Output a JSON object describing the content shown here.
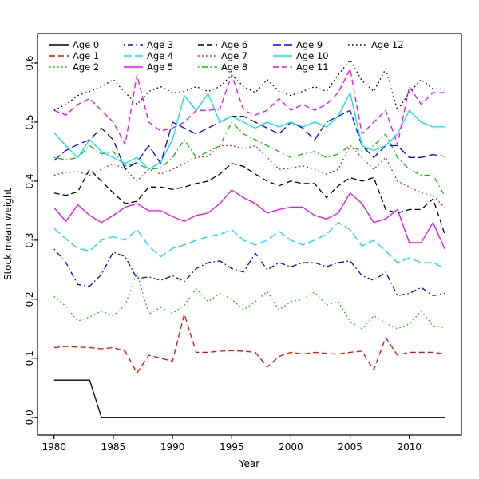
{
  "chart_data": {
    "type": "line",
    "title": "",
    "xlabel": "Year",
    "ylabel": "Stock mean weight",
    "xlim": [
      1978.6,
      2014.4
    ],
    "ylim": [
      -0.03,
      0.65
    ],
    "x_ticks": [
      1980,
      1985,
      1990,
      1995,
      2000,
      2005,
      2010
    ],
    "y_ticks": [
      0.0,
      0.1,
      0.2,
      0.3,
      0.4,
      0.5,
      0.6
    ],
    "grid": false,
    "legend_position": "top-inside, 5 columns, no box",
    "years": [
      1980,
      1981,
      1982,
      1983,
      1984,
      1985,
      1986,
      1987,
      1988,
      1989,
      1990,
      1991,
      1992,
      1993,
      1994,
      1995,
      1996,
      1997,
      1998,
      1999,
      2000,
      2001,
      2002,
      2003,
      2004,
      2005,
      2006,
      2007,
      2008,
      2009,
      2010,
      2011,
      2012,
      2013
    ],
    "series": [
      {
        "name": "Age 0",
        "color": "#000000",
        "linetype": "solid",
        "values": [
          0.063,
          0.063,
          0.063,
          0.063,
          0.0,
          0.0,
          0.0,
          0.0,
          0.0,
          0.0,
          0.0,
          0.0,
          0.0,
          0.0,
          0.0,
          0.0,
          0.0,
          0.0,
          0.0,
          0.0,
          0.0,
          0.0,
          0.0,
          0.0,
          0.0,
          0.0,
          0.0,
          0.0,
          0.0,
          0.0,
          0.0,
          0.0,
          0.0,
          0.0
        ]
      },
      {
        "name": "Age 1",
        "color": "#ff0000",
        "linetype": "dashed",
        "values": [
          0.118,
          0.12,
          0.119,
          0.118,
          0.116,
          0.118,
          0.112,
          0.075,
          0.105,
          0.1,
          0.095,
          0.175,
          0.11,
          0.11,
          0.112,
          0.113,
          0.112,
          0.11,
          0.085,
          0.103,
          0.11,
          0.107,
          0.11,
          0.108,
          0.107,
          0.11,
          0.112,
          0.08,
          0.135,
          0.105,
          0.11,
          0.11,
          0.11,
          0.107
        ]
      },
      {
        "name": "Age 2",
        "color": "#00c800",
        "linetype": "dotted",
        "values": [
          0.205,
          0.188,
          0.163,
          0.17,
          0.18,
          0.172,
          0.19,
          0.245,
          0.175,
          0.186,
          0.176,
          0.19,
          0.218,
          0.196,
          0.21,
          0.2,
          0.182,
          0.196,
          0.213,
          0.182,
          0.196,
          0.2,
          0.212,
          0.19,
          0.196,
          0.162,
          0.15,
          0.172,
          0.16,
          0.15,
          0.158,
          0.18,
          0.155,
          0.152
        ]
      },
      {
        "name": "Age 3",
        "color": "#0000ff",
        "linetype": "dotdash",
        "values": [
          0.285,
          0.262,
          0.225,
          0.222,
          0.242,
          0.28,
          0.272,
          0.235,
          0.238,
          0.232,
          0.24,
          0.23,
          0.252,
          0.262,
          0.265,
          0.252,
          0.246,
          0.278,
          0.25,
          0.262,
          0.255,
          0.262,
          0.262,
          0.255,
          0.262,
          0.265,
          0.24,
          0.232,
          0.246,
          0.206,
          0.21,
          0.22,
          0.206,
          0.21
        ]
      },
      {
        "name": "Age 4",
        "color": "#00e5ee",
        "linetype": "longdash",
        "values": [
          0.32,
          0.302,
          0.286,
          0.282,
          0.3,
          0.306,
          0.3,
          0.318,
          0.29,
          0.272,
          0.286,
          0.292,
          0.3,
          0.306,
          0.31,
          0.318,
          0.3,
          0.292,
          0.3,
          0.315,
          0.3,
          0.292,
          0.3,
          0.31,
          0.33,
          0.318,
          0.29,
          0.3,
          0.282,
          0.262,
          0.27,
          0.262,
          0.262,
          0.252
        ]
      },
      {
        "name": "Age 5",
        "color": "#ff00ff",
        "linetype": "solid",
        "values": [
          0.355,
          0.332,
          0.36,
          0.342,
          0.33,
          0.342,
          0.356,
          0.362,
          0.35,
          0.35,
          0.34,
          0.332,
          0.342,
          0.346,
          0.362,
          0.385,
          0.372,
          0.362,
          0.346,
          0.352,
          0.356,
          0.356,
          0.342,
          0.336,
          0.346,
          0.38,
          0.362,
          0.33,
          0.336,
          0.352,
          0.296,
          0.296,
          0.33,
          0.285
        ]
      },
      {
        "name": "Age 6",
        "color": "#000000",
        "linetype": "dashed",
        "values": [
          0.38,
          0.376,
          0.382,
          0.42,
          0.4,
          0.38,
          0.362,
          0.366,
          0.39,
          0.39,
          0.386,
          0.39,
          0.396,
          0.4,
          0.412,
          0.43,
          0.425,
          0.412,
          0.4,
          0.392,
          0.4,
          0.396,
          0.396,
          0.372,
          0.392,
          0.406,
          0.4,
          0.406,
          0.352,
          0.346,
          0.352,
          0.352,
          0.37,
          0.31
        ]
      },
      {
        "name": "Age 7",
        "color": "#ff0000",
        "linetype": "dotted",
        "values": [
          0.41,
          0.415,
          0.416,
          0.41,
          0.42,
          0.43,
          0.42,
          0.4,
          0.42,
          0.412,
          0.42,
          0.43,
          0.44,
          0.442,
          0.46,
          0.46,
          0.455,
          0.46,
          0.44,
          0.42,
          0.422,
          0.426,
          0.42,
          0.412,
          0.42,
          0.46,
          0.44,
          0.42,
          0.44,
          0.4,
          0.39,
          0.38,
          0.376,
          0.355
        ]
      },
      {
        "name": "Age 8",
        "color": "#00c800",
        "linetype": "dotdash",
        "values": [
          0.44,
          0.436,
          0.44,
          0.46,
          0.446,
          0.45,
          0.426,
          0.43,
          0.42,
          0.422,
          0.44,
          0.47,
          0.44,
          0.45,
          0.46,
          0.5,
          0.48,
          0.47,
          0.46,
          0.45,
          0.44,
          0.446,
          0.45,
          0.44,
          0.446,
          0.46,
          0.45,
          0.46,
          0.48,
          0.44,
          0.42,
          0.41,
          0.41,
          0.375
        ]
      },
      {
        "name": "Age 9",
        "color": "#0000ff",
        "linetype": "longdash",
        "values": [
          0.435,
          0.452,
          0.462,
          0.47,
          0.49,
          0.47,
          0.42,
          0.432,
          0.46,
          0.43,
          0.5,
          0.49,
          0.48,
          0.49,
          0.5,
          0.51,
          0.51,
          0.5,
          0.49,
          0.48,
          0.5,
          0.49,
          0.47,
          0.5,
          0.51,
          0.52,
          0.46,
          0.44,
          0.46,
          0.46,
          0.44,
          0.44,
          0.445,
          0.442
        ]
      },
      {
        "name": "Age 10",
        "color": "#00e5ee",
        "linetype": "solid",
        "values": [
          0.482,
          0.46,
          0.44,
          0.47,
          0.45,
          0.44,
          0.43,
          0.44,
          0.42,
          0.432,
          0.47,
          0.545,
          0.52,
          0.548,
          0.5,
          0.51,
          0.5,
          0.49,
          0.5,
          0.492,
          0.5,
          0.492,
          0.5,
          0.492,
          0.51,
          0.55,
          0.46,
          0.452,
          0.46,
          0.48,
          0.52,
          0.5,
          0.492,
          0.492
        ]
      },
      {
        "name": "Age 11",
        "color": "#ff00ff",
        "linetype": "dashed",
        "values": [
          0.52,
          0.512,
          0.53,
          0.54,
          0.52,
          0.5,
          0.462,
          0.58,
          0.5,
          0.485,
          0.49,
          0.5,
          0.52,
          0.52,
          0.522,
          0.58,
          0.52,
          0.512,
          0.52,
          0.54,
          0.52,
          0.53,
          0.52,
          0.53,
          0.55,
          0.59,
          0.48,
          0.5,
          0.52,
          0.462,
          0.56,
          0.53,
          0.55,
          0.55
        ]
      },
      {
        "name": "Age 12",
        "color": "#000000",
        "linetype": "dotted",
        "values": [
          0.52,
          0.53,
          0.545,
          0.552,
          0.56,
          0.572,
          0.55,
          0.53,
          0.552,
          0.56,
          0.55,
          0.552,
          0.56,
          0.552,
          0.56,
          0.58,
          0.56,
          0.55,
          0.572,
          0.552,
          0.545,
          0.552,
          0.56,
          0.552,
          0.58,
          0.605,
          0.57,
          0.552,
          0.59,
          0.52,
          0.55,
          0.572,
          0.556,
          0.556
        ]
      }
    ]
  }
}
